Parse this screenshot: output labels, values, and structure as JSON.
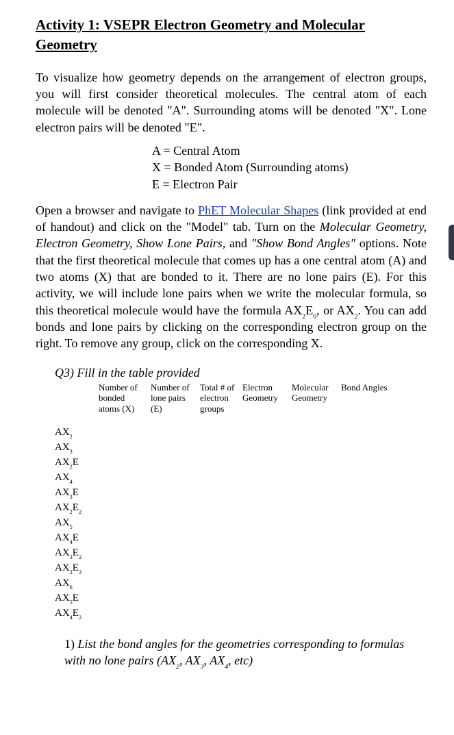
{
  "title": "Activity 1: VSEPR Electron Geometry and Molecular Geometry",
  "para1_a": "To visualize how geometry depends on the arrangement of electron groups, you will first consider theoretical molecules.  The central atom of each molecule will be denoted \"A\".  Surrounding atoms will be denoted \"X\". Lone electron pairs will be denoted \"E\".",
  "notation": {
    "a": "A = Central Atom",
    "x": "X = Bonded Atom (Surrounding atoms)",
    "e": "E = Electron Pair"
  },
  "para2_a": "Open a browser and navigate to ",
  "link_text": "PhET Molecular Shapes",
  "para2_b": " (link provided at end of handout) and click on the \"Model\" tab.  Turn on the ",
  "para2_italic": "Molecular Geometry, Electron Geometry, Show Lone Pairs,",
  "para2_c": " and ",
  "para2_italic2": "\"Show Bond Angles\"",
  "para2_d": " options.  Note that the first theoretical molecule that comes up has a one central atom (A) and two atoms (X) that are bonded to it. There are no lone pairs (E).   For this activity, we will include lone pairs when we write the molecular formula, so this theoretical molecule would have the formula AX",
  "para2_e": "E",
  "para2_f": ", or AX",
  "para2_g": ".   You can add bonds and lone pairs by clicking on the corresponding electron group on the right. To remove any group, click on the corresponding X.",
  "q3_heading": "Q3) Fill in the table provided",
  "table": {
    "headers": {
      "h1a": "Number of",
      "h1b": "bonded",
      "h1c": "atoms (X)",
      "h2a": "Number of",
      "h2b": "lone pairs",
      "h2c": "(E)",
      "h3a": "Total # of",
      "h3b": "electron",
      "h3c": "groups",
      "h4a": "Electron",
      "h4b": "Geometry",
      "h5a": "Molecular",
      "h5b": "Geometry",
      "h6": "Bond Angles"
    },
    "rows": [
      {
        "a": "AX",
        "x": "2",
        "e": ""
      },
      {
        "a": "AX",
        "x": "3",
        "e": ""
      },
      {
        "a": "AX",
        "x": "2",
        "e": "E"
      },
      {
        "a": "AX",
        "x": "4",
        "e": ""
      },
      {
        "a": "AX",
        "x": "3",
        "e": "E"
      },
      {
        "a": "AX",
        "x": "2",
        "e": "E",
        "e2": "2"
      },
      {
        "a": "AX",
        "x": "5",
        "e": ""
      },
      {
        "a": "AX",
        "x": "4",
        "e": "E"
      },
      {
        "a": "AX",
        "x": "3",
        "e": "E",
        "e2": "2"
      },
      {
        "a": "AX",
        "x": "2",
        "e": "E",
        "e2": "3"
      },
      {
        "a": "AX",
        "x": "6",
        "e": ""
      },
      {
        "a": "AX",
        "x": "5",
        "e": "E"
      },
      {
        "a": "AX",
        "x": "4",
        "e": "E",
        "e2": "2"
      }
    ]
  },
  "q1_num": "1) ",
  "q1_a": "List the bond angles for the geometries corresponding to formulas with no lone pairs (AX",
  "q1_b": ", AX",
  "q1_c": ", AX",
  "q1_d": ", etc)",
  "subs": {
    "s2": "2",
    "s3": "3",
    "s4": "4",
    "s0": "0"
  }
}
